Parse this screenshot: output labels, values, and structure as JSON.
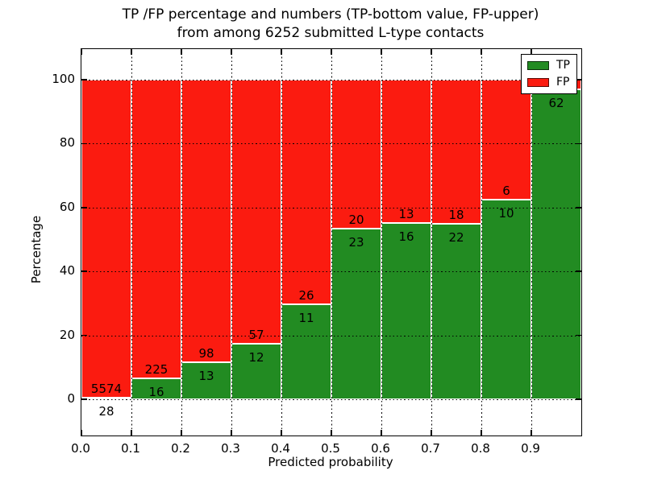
{
  "chart_data": {
    "type": "bar",
    "stacked": true,
    "title_line1": "TP /FP percentage and numbers (TP-bottom value, FP-upper)",
    "title_line2": "from among 6252 submitted L-type contacts",
    "total_contacts": 6252,
    "xlabel": "Predicted probability",
    "ylabel": "Percentage",
    "xlim": [
      0.0,
      1.0
    ],
    "ylim_shown": [
      0,
      100
    ],
    "xticks": [
      "0.0",
      "0.1",
      "0.2",
      "0.3",
      "0.4",
      "0.5",
      "0.6",
      "0.7",
      "0.8",
      "0.9"
    ],
    "yticks": [
      0,
      20,
      40,
      60,
      80,
      100
    ],
    "grid": true,
    "grid_style": "dotted",
    "legend_position": "upper right",
    "legend": [
      {
        "label": "TP",
        "color": "#228b22"
      },
      {
        "label": "FP",
        "color": "#fb1b10"
      }
    ],
    "bins": [
      {
        "x_range": "0.0-0.1",
        "tp": 28,
        "fp": 5574
      },
      {
        "x_range": "0.1-0.2",
        "tp": 16,
        "fp": 225
      },
      {
        "x_range": "0.2-0.3",
        "tp": 13,
        "fp": 98
      },
      {
        "x_range": "0.3-0.4",
        "tp": 12,
        "fp": 57
      },
      {
        "x_range": "0.4-0.5",
        "tp": 11,
        "fp": 26
      },
      {
        "x_range": "0.5-0.6",
        "tp": 23,
        "fp": 20
      },
      {
        "x_range": "0.6-0.7",
        "tp": 16,
        "fp": 13
      },
      {
        "x_range": "0.7-0.8",
        "tp": 22,
        "fp": 18
      },
      {
        "x_range": "0.8-0.9",
        "tp": 10,
        "fp": 6
      },
      {
        "x_range": "0.9-1.0",
        "tp": 62,
        "fp": 2,
        "fp_label_hidden": true
      }
    ]
  }
}
